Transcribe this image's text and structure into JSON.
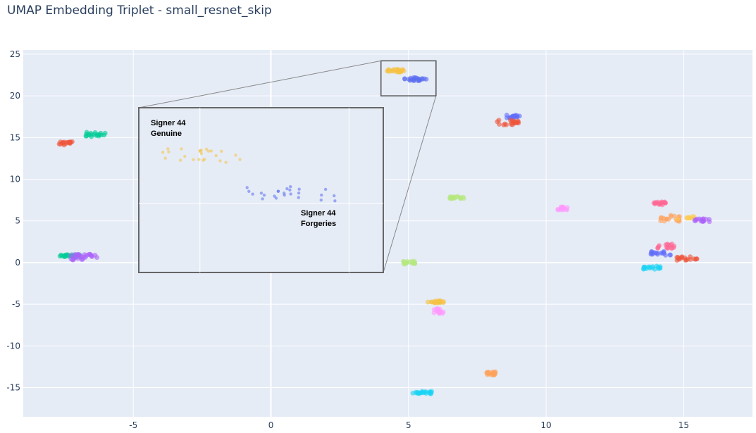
{
  "chart_data": {
    "type": "scatter",
    "title": "UMAP Embedding Triplet - small_resnet_skip",
    "xlabel": "",
    "ylabel": "",
    "xlim": [
      -9.0,
      17.5
    ],
    "ylim": [
      -18.5,
      25.5
    ],
    "x_ticks": [
      -5,
      0,
      5,
      10,
      15
    ],
    "y_ticks": [
      -15,
      -10,
      -5,
      0,
      5,
      10,
      15,
      20,
      25
    ],
    "grid": true,
    "legend": "none",
    "background": "#e5ecf6",
    "clusters": [
      {
        "color": "#f5c242",
        "center": [
          4.5,
          23.0
        ],
        "spread": [
          0.35,
          0.2
        ],
        "n": 24
      },
      {
        "color": "#5b6ef0",
        "center": [
          5.25,
          22.0
        ],
        "spread": [
          0.4,
          0.2
        ],
        "n": 24
      },
      {
        "color": "#ef553b",
        "center": [
          -7.4,
          14.3
        ],
        "spread": [
          0.3,
          0.2
        ],
        "n": 18
      },
      {
        "color": "#00cc96",
        "center": [
          -6.4,
          15.4
        ],
        "spread": [
          0.4,
          0.3
        ],
        "n": 20
      },
      {
        "color": "#00cc96",
        "center": [
          -7.3,
          0.8
        ],
        "spread": [
          0.4,
          0.15
        ],
        "n": 22
      },
      {
        "color": "#ab63fa",
        "center": [
          -6.8,
          0.8
        ],
        "spread": [
          0.5,
          0.2
        ],
        "n": 20
      },
      {
        "color": "#ab63fa",
        "center": [
          -7.0,
          0.5
        ],
        "spread": [
          0.3,
          0.2
        ],
        "n": 10
      },
      {
        "color": "#636efa",
        "center": [
          8.8,
          17.5
        ],
        "spread": [
          0.25,
          0.2
        ],
        "n": 18
      },
      {
        "color": "#ef553b",
        "center": [
          8.6,
          16.8
        ],
        "spread": [
          0.4,
          0.3
        ],
        "n": 20
      },
      {
        "color": "#b6e880",
        "center": [
          6.8,
          7.8
        ],
        "spread": [
          0.3,
          0.15
        ],
        "n": 20
      },
      {
        "color": "#ff97ff",
        "center": [
          10.6,
          6.5
        ],
        "spread": [
          0.2,
          0.2
        ],
        "n": 14
      },
      {
        "color": "#b6e880",
        "center": [
          5.0,
          0.0
        ],
        "spread": [
          0.25,
          0.2
        ],
        "n": 20
      },
      {
        "color": "#f5c242",
        "center": [
          6.0,
          -4.7
        ],
        "spread": [
          0.3,
          0.15
        ],
        "n": 18
      },
      {
        "color": "#ff97ff",
        "center": [
          6.1,
          -5.8
        ],
        "spread": [
          0.2,
          0.3
        ],
        "n": 14
      },
      {
        "color": "#ffa15a",
        "center": [
          8.0,
          -13.3
        ],
        "spread": [
          0.2,
          0.2
        ],
        "n": 18
      },
      {
        "color": "#19d3f3",
        "center": [
          5.5,
          -15.6
        ],
        "spread": [
          0.35,
          0.15
        ],
        "n": 22
      },
      {
        "color": "#ff6692",
        "center": [
          14.1,
          7.1
        ],
        "spread": [
          0.25,
          0.2
        ],
        "n": 16
      },
      {
        "color": "#ffa15a",
        "center": [
          14.5,
          5.3
        ],
        "spread": [
          0.4,
          0.4
        ],
        "n": 18
      },
      {
        "color": "#fecb52",
        "center": [
          15.0,
          5.4
        ],
        "spread": [
          0.4,
          0.2
        ],
        "n": 10
      },
      {
        "color": "#ab63fa",
        "center": [
          15.7,
          5.1
        ],
        "spread": [
          0.3,
          0.2
        ],
        "n": 16
      },
      {
        "color": "#636efa",
        "center": [
          14.2,
          1.1
        ],
        "spread": [
          0.4,
          0.25
        ],
        "n": 18
      },
      {
        "color": "#ff6692",
        "center": [
          14.4,
          2.0
        ],
        "spread": [
          0.35,
          0.3
        ],
        "n": 16
      },
      {
        "color": "#ef553b",
        "center": [
          15.1,
          0.5
        ],
        "spread": [
          0.4,
          0.25
        ],
        "n": 18
      },
      {
        "color": "#19d3f3",
        "center": [
          13.8,
          -0.6
        ],
        "spread": [
          0.4,
          0.2
        ],
        "n": 18
      }
    ],
    "zoom_region": {
      "x": [
        4.0,
        6.0
      ],
      "y": [
        20.0,
        24.2
      ]
    },
    "inset": {
      "x_domain": [
        4.0,
        6.0
      ],
      "y_domain": [
        20.0,
        24.2
      ],
      "annotations": [
        {
          "lines": [
            "Signer 44",
            "Genuine"
          ]
        },
        {
          "lines": [
            "Signer 44",
            "Forgeries"
          ]
        }
      ]
    }
  }
}
